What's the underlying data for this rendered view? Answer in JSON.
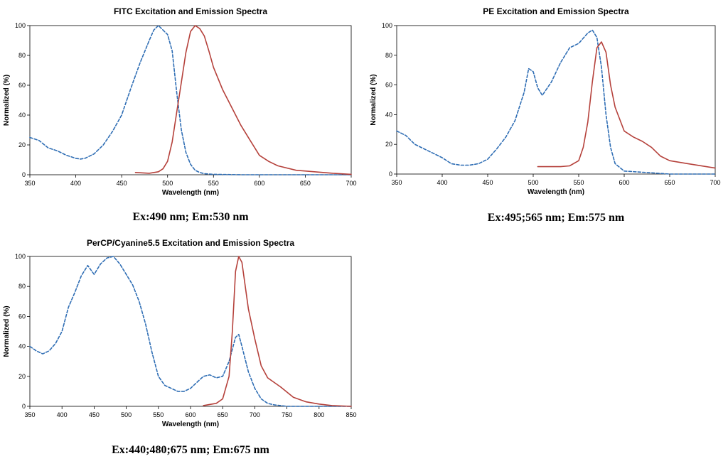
{
  "colors": {
    "excitation": "#2e6db4",
    "emission": "#b5413b",
    "axis": "#000000"
  },
  "chart_data": [
    {
      "type": "line",
      "title": "FITC Excitation and Emission Spectra",
      "xlabel": "Wavelength (nm)",
      "ylabel": "Normalized (%)",
      "xlim": [
        350,
        700
      ],
      "ylim": [
        0,
        100
      ],
      "xticks": [
        350,
        400,
        450,
        500,
        550,
        600,
        650,
        700
      ],
      "yticks": [
        0,
        20,
        40,
        60,
        80,
        100
      ],
      "caption": "Ex:490 nm; Em:530 nm",
      "series": [
        {
          "name": "Excitation",
          "style": "dashed",
          "color": "#2e6db4",
          "x": [
            350,
            360,
            370,
            380,
            390,
            400,
            405,
            410,
            420,
            430,
            440,
            450,
            460,
            470,
            480,
            485,
            490,
            495,
            500,
            505,
            510,
            515,
            520,
            525,
            530,
            535,
            540,
            550,
            560,
            580,
            600,
            650,
            700
          ],
          "y": [
            25,
            23,
            18,
            16,
            13,
            11,
            10.5,
            11,
            14,
            20,
            29,
            40,
            58,
            75,
            90,
            97,
            100,
            97,
            94,
            83,
            55,
            30,
            15,
            7,
            3,
            1.5,
            0.7,
            0.3,
            0.2,
            0,
            0,
            0,
            0
          ]
        },
        {
          "name": "Emission",
          "style": "solid",
          "color": "#b5413b",
          "x": [
            465,
            480,
            490,
            495,
            500,
            505,
            510,
            515,
            520,
            525,
            530,
            535,
            540,
            545,
            550,
            560,
            570,
            580,
            590,
            600,
            610,
            620,
            640,
            660,
            680,
            700
          ],
          "y": [
            1.5,
            1,
            2,
            4,
            9,
            22,
            42,
            62,
            82,
            96,
            100,
            98,
            93,
            83,
            72,
            57,
            45,
            33,
            23,
            13,
            9,
            6,
            3,
            2,
            1,
            0.3
          ]
        }
      ]
    },
    {
      "type": "line",
      "title": "PE Excitation and Emission Spectra",
      "xlabel": "Wavelength (nm)",
      "ylabel": "Normalized (%)",
      "xlim": [
        350,
        700
      ],
      "ylim": [
        0,
        100
      ],
      "xticks": [
        350,
        400,
        450,
        500,
        550,
        600,
        650,
        700
      ],
      "yticks": [
        0,
        20,
        40,
        60,
        80,
        100
      ],
      "caption": "Ex:495;565 nm; Em:575 nm",
      "series": [
        {
          "name": "Excitation",
          "style": "dashed",
          "color": "#2e6db4",
          "x": [
            350,
            360,
            370,
            380,
            390,
            400,
            410,
            420,
            430,
            440,
            450,
            460,
            470,
            480,
            490,
            495,
            500,
            505,
            510,
            520,
            530,
            540,
            550,
            560,
            565,
            570,
            575,
            580,
            585,
            590,
            600,
            650,
            700
          ],
          "y": [
            29,
            26,
            20,
            17,
            14,
            11,
            7,
            6,
            6,
            7,
            10,
            17,
            25,
            36,
            55,
            71,
            69,
            58,
            53,
            62,
            75,
            85,
            88,
            95,
            97,
            92,
            72,
            40,
            18,
            7,
            2,
            0,
            0
          ]
        },
        {
          "name": "Emission",
          "style": "solid",
          "color": "#b5413b",
          "x": [
            505,
            520,
            530,
            540,
            550,
            555,
            560,
            565,
            570,
            575,
            580,
            585,
            590,
            600,
            610,
            620,
            630,
            640,
            650,
            670,
            700
          ],
          "y": [
            5,
            5,
            5,
            5.5,
            9,
            18,
            35,
            62,
            85,
            89,
            82,
            60,
            45,
            29,
            25,
            22,
            18,
            12,
            9,
            7,
            4
          ]
        }
      ]
    },
    {
      "type": "line",
      "title": "PerCP/Cyanine5.5 Excitation and Emission Spectra",
      "xlabel": "Wavelength (nm)",
      "ylabel": "Normalized (%)",
      "xlim": [
        350,
        850
      ],
      "ylim": [
        0,
        100
      ],
      "xticks": [
        350,
        400,
        450,
        500,
        550,
        600,
        650,
        700,
        750,
        800,
        850
      ],
      "yticks": [
        0,
        20,
        40,
        60,
        80,
        100
      ],
      "caption": "Ex:440;480;675 nm; Em:675 nm",
      "series": [
        {
          "name": "Excitation",
          "style": "dashed",
          "color": "#2e6db4",
          "x": [
            350,
            360,
            370,
            380,
            390,
            400,
            410,
            420,
            430,
            440,
            450,
            460,
            470,
            480,
            490,
            500,
            510,
            520,
            530,
            540,
            550,
            560,
            570,
            580,
            590,
            600,
            610,
            620,
            630,
            640,
            650,
            660,
            670,
            675,
            680,
            690,
            700,
            710,
            720,
            730,
            740,
            750,
            800,
            850
          ],
          "y": [
            40,
            37,
            35,
            37,
            42,
            50,
            66,
            76,
            87,
            94,
            88,
            95,
            99,
            100,
            95,
            88,
            81,
            70,
            55,
            36,
            20,
            14,
            12,
            10,
            10,
            12,
            16,
            20,
            21,
            19,
            20,
            30,
            46,
            48,
            40,
            23,
            12,
            5,
            2,
            1,
            0.5,
            0,
            0,
            0
          ]
        },
        {
          "name": "Emission",
          "style": "solid",
          "color": "#b5413b",
          "x": [
            620,
            640,
            650,
            660,
            665,
            670,
            675,
            680,
            690,
            700,
            710,
            720,
            740,
            760,
            780,
            800,
            820,
            850
          ],
          "y": [
            0.5,
            2,
            5,
            20,
            50,
            90,
            100,
            96,
            65,
            45,
            27,
            19,
            13,
            6,
            3,
            1.5,
            0.5,
            0
          ]
        }
      ]
    }
  ]
}
